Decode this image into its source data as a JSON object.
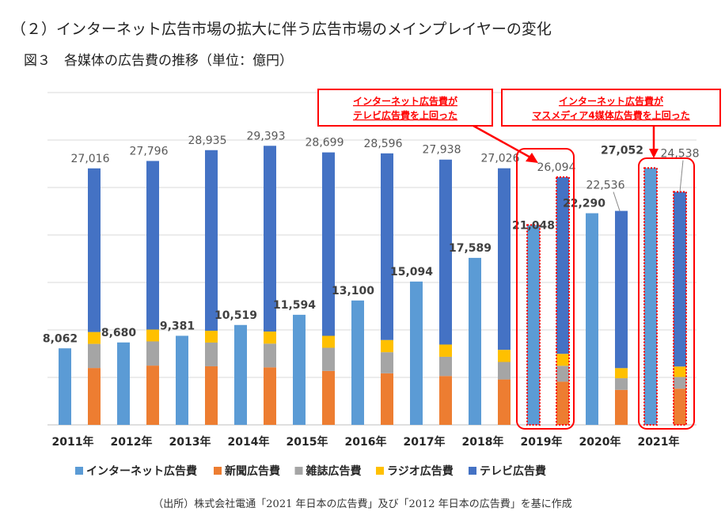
{
  "heading": "（２）インターネット広告市場の拡大に伴う広告市場のメインプレイヤーの変化",
  "figure_title": "図３　各媒体の広告費の推移（単位：億円）",
  "source": "（出所）株式会社電通「2021 年日本の広告費」及び「2012 年日本の広告費」を基に作成",
  "annotations": [
    {
      "lines": [
        "インターネット広告費が",
        "テレビ広告費を上回った"
      ]
    },
    {
      "lines": [
        "インターネット広告費が",
        "マスメディア4媒体広告費を上回った"
      ]
    }
  ],
  "colors": {
    "internet": "#5b9bd5",
    "newspaper": "#ed7d31",
    "magazine": "#a5a5a5",
    "radio": "#ffc000",
    "tv": "#4472c4",
    "highlight": "#ff0000"
  },
  "chart_data": {
    "type": "bar",
    "categories": [
      "2011年",
      "2012年",
      "2013年",
      "2014年",
      "2015年",
      "2016年",
      "2017年",
      "2018年",
      "2019年",
      "2020年",
      "2021年"
    ],
    "series": [
      {
        "name": "インターネット広告費",
        "values": [
          8062,
          8680,
          9381,
          10519,
          11594,
          13100,
          15094,
          17589,
          21048,
          22290,
          27052
        ]
      },
      {
        "name": "新聞広告費",
        "values": [
          5990,
          6242,
          6170,
          6057,
          5679,
          5431,
          5147,
          4784,
          4547,
          3688,
          3815
        ]
      },
      {
        "name": "雑誌広告費",
        "values": [
          2542,
          2551,
          2499,
          2500,
          2443,
          2223,
          2023,
          1841,
          1675,
          1223,
          1224
        ]
      },
      {
        "name": "ラジオ広告費",
        "values": [
          1247,
          1246,
          1243,
          1272,
          1254,
          1285,
          1290,
          1278,
          1260,
          1066,
          1106
        ]
      },
      {
        "name": "テレビ広告費",
        "values": [
          17237,
          17757,
          19023,
          19564,
          19323,
          19657,
          19478,
          19123,
          18612,
          16559,
          18393
        ]
      }
    ],
    "mass_media_totals": [
      27016,
      27796,
      28935,
      29393,
      28699,
      28596,
      27938,
      27026,
      26094,
      22536,
      24538
    ],
    "internet_labels": [
      "8,062",
      "8,680",
      "9,381",
      "10,519",
      "11,594",
      "13,100",
      "15,094",
      "17,589",
      "21,048",
      "22,290",
      "27,052"
    ],
    "total_labels": [
      "27,016",
      "27,796",
      "28,935",
      "29,393",
      "28,699",
      "28,596",
      "27,938",
      "27,026",
      "26,094",
      "22,536",
      "24,538"
    ],
    "ylim": [
      0,
      35000
    ],
    "grid": true,
    "legend": "bottom",
    "highlighted_years": [
      "2019年",
      "2021年"
    ]
  }
}
